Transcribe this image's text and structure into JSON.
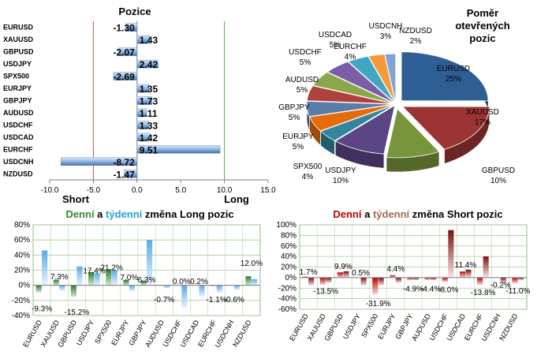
{
  "colors": {
    "pos_bar": "#9bbfe6",
    "long_line": "#5aa852",
    "short_line": "#c0504d",
    "grid": "#a7c99c",
    "long_green": "#2f8a2f",
    "long_cyan": "#21a3c5",
    "short_red": "#c00000",
    "short_brown": "#9c6b53"
  },
  "chart_data": [
    {
      "id": "positions",
      "type": "bar",
      "orientation": "horizontal",
      "title": "Pozice",
      "categories": [
        "EURUSD",
        "XAUUSD",
        "GBPUSD",
        "USDJPY",
        "SPX500",
        "EURJPY",
        "GBPJPY",
        "AUDUSD",
        "USDCHF",
        "USDCAD",
        "EURCHF",
        "USDCNH",
        "NZDUSD"
      ],
      "values": [
        -1.3,
        1.43,
        -2.07,
        2.42,
        -2.69,
        1.35,
        1.73,
        1.11,
        1.33,
        1.42,
        9.51,
        -8.72,
        -1.47
      ],
      "labels": [
        "-1.30",
        "1.43",
        "-2.07",
        "2.42",
        "-2.69",
        "1.35",
        "1.73",
        "1.11",
        "1.33",
        "1.42",
        "9.51",
        "-8.72",
        "-1.47"
      ],
      "xlim": [
        -10,
        15
      ],
      "xticks": [
        "-10.0",
        "-5.0",
        "0.0",
        "5.0",
        "10.0",
        "15.0"
      ],
      "xtick_values": [
        -10,
        -5,
        0,
        5,
        10,
        15
      ],
      "short_label": "Short",
      "long_label": "Long",
      "short_line_at": -5,
      "long_line_at": 10
    },
    {
      "id": "ratio",
      "type": "pie",
      "title_lines": [
        "Poměr",
        "otevřených",
        "pozic"
      ],
      "slices": [
        {
          "name": "EURUSD",
          "value": 25,
          "label": "25%",
          "color": "#2e5f94"
        },
        {
          "name": "XAUUSD",
          "value": 17,
          "label": "17%",
          "color": "#9b3433"
        },
        {
          "name": "GBPUSD",
          "value": 10,
          "label": "10%",
          "color": "#77953b"
        },
        {
          "name": "USDJPY",
          "value": 10,
          "label": "10%",
          "color": "#5b4585"
        },
        {
          "name": "SPX500",
          "value": 4,
          "label": "4%",
          "color": "#31859c"
        },
        {
          "name": "EURJPY",
          "value": 5,
          "label": "5%",
          "color": "#e46c0a"
        },
        {
          "name": "GBPJPY",
          "value": 5,
          "label": "5%",
          "color": "#5b7ba8"
        },
        {
          "name": "AUDUSD",
          "value": 5,
          "label": "5%",
          "color": "#b0403e"
        },
        {
          "name": "USDCHF",
          "value": 5,
          "label": "5%",
          "color": "#8aa84b"
        },
        {
          "name": "USDCAD",
          "value": 5,
          "label": "5%",
          "color": "#7b5ea7"
        },
        {
          "name": "EURCHF",
          "value": 4,
          "label": "4%",
          "color": "#3fa6c4"
        },
        {
          "name": "USDCNH",
          "value": 3,
          "label": "3%",
          "color": "#f39a3c"
        },
        {
          "name": "NZDUSD",
          "value": 2,
          "label": "2%",
          "color": "#7fa3d6"
        }
      ]
    },
    {
      "id": "long_change",
      "type": "bar",
      "title_parts": [
        "Denní",
        " a ",
        "týdenní",
        " změna Long pozic"
      ],
      "categories": [
        "EURUSD",
        "XAUUSD",
        "GBPUSD",
        "USDJPY",
        "SPX500",
        "EURJPY",
        "GBPJPY",
        "AUDUSD",
        "USDCHF",
        "USDCAD",
        "EURCHF",
        "USDCNH",
        "NZDUSD"
      ],
      "series": [
        {
          "name": "Denní",
          "values": [
            -9.3,
            7.3,
            -15.2,
            17.4,
            21.2,
            7.0,
            6.3,
            -0.7,
            0.0,
            0.2,
            -1.1,
            -0.6,
            12.0
          ],
          "color": "#3c8c3c"
        },
        {
          "name": "týdenní",
          "values": [
            46,
            -7,
            25,
            16,
            20,
            -8,
            60,
            -4,
            -30,
            -15,
            -10,
            -6,
            8
          ],
          "color": "#5aa9ea"
        }
      ],
      "labels": [
        {
          "text": "-9.3%",
          "category": 0,
          "y": -30
        },
        {
          "text": "7.3%",
          "category": 1,
          "y": 12
        },
        {
          "text": "-15.2%",
          "category": 2,
          "y": -35
        },
        {
          "text": "17.4%",
          "category": 3,
          "y": 20
        },
        {
          "text": "21.2%",
          "category": 4,
          "y": 24
        },
        {
          "text": "7.0%",
          "category": 5,
          "y": 11
        },
        {
          "text": "6.3%",
          "category": 6,
          "y": 8
        },
        {
          "text": "-0.7%",
          "category": 7,
          "y": -18
        },
        {
          "text": "0.0%",
          "category": 8,
          "y": 6
        },
        {
          "text": "0.2%",
          "category": 9,
          "y": 6
        },
        {
          "text": "-1.1%",
          "category": 10,
          "y": -18
        },
        {
          "text": "-0.6%",
          "category": 11,
          "y": -18
        },
        {
          "text": "12.0%",
          "category": 12,
          "y": 30
        }
      ],
      "ylim": [
        -40,
        80
      ],
      "yticks": [
        "-40%",
        "-20%",
        "0%",
        "20%",
        "40%",
        "60%",
        "80%"
      ],
      "ytick_values": [
        -40,
        -20,
        0,
        20,
        40,
        60,
        80
      ]
    },
    {
      "id": "short_change",
      "type": "bar",
      "title_parts": [
        "Denní",
        " a ",
        "týdenní",
        " změna Short pozic"
      ],
      "categories": [
        "EURUSD",
        "XAUUSD",
        "GBPUSD",
        "USDJPY",
        "SPX500",
        "EURJPY",
        "GBPJPY",
        "AUDUSD",
        "USDCHF",
        "USDCAD",
        "EURCHF",
        "USDCNH",
        "NZDUSD"
      ],
      "series": [
        {
          "name": "Denní",
          "values": [
            1.7,
            -13.5,
            9.9,
            0.5,
            -31.9,
            4.4,
            -4.9,
            -4.4,
            -8.0,
            11.4,
            -13.8,
            -0.2,
            -11.0
          ],
          "color": "#c00000"
        },
        {
          "name": "týdenní",
          "values": [
            -15,
            -10,
            12,
            -15,
            -15,
            -10,
            -5,
            -5,
            90,
            15,
            40,
            -10,
            -5
          ],
          "color": "#c00000"
        }
      ],
      "labels": [
        {
          "text": "1.7%",
          "category": 0,
          "y": 12
        },
        {
          "text": "-13.5%",
          "category": 1,
          "y": -25
        },
        {
          "text": "9.9%",
          "category": 2,
          "y": 22
        },
        {
          "text": "0.5%",
          "category": 3,
          "y": 10
        },
        {
          "text": "-31.9%",
          "category": 4,
          "y": -48
        },
        {
          "text": "4.4%",
          "category": 5,
          "y": 18
        },
        {
          "text": "-4.9%",
          "category": 6,
          "y": -20
        },
        {
          "text": "-4.4%",
          "category": 7,
          "y": -20
        },
        {
          "text": "-8.0%",
          "category": 8,
          "y": -22
        },
        {
          "text": "11.4%",
          "category": 9,
          "y": 25
        },
        {
          "text": "-13.8%",
          "category": 10,
          "y": -27
        },
        {
          "text": "-0.2%",
          "category": 11,
          "y": -13
        },
        {
          "text": "-11.0%",
          "category": 12,
          "y": -24
        }
      ],
      "ylim": [
        -60,
        100
      ],
      "yticks": [
        "-60%",
        "-40%",
        "-20%",
        "0%",
        "20%",
        "40%",
        "60%",
        "80%",
        "100%"
      ],
      "ytick_values": [
        -60,
        -40,
        -20,
        0,
        20,
        40,
        60,
        80,
        100
      ]
    }
  ]
}
